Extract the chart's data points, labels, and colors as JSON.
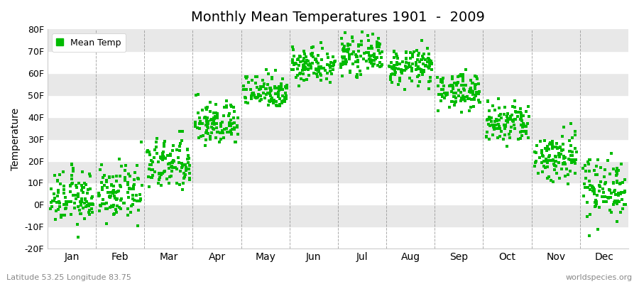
{
  "title": "Monthly Mean Temperatures 1901  -  2009",
  "ylabel": "Temperature",
  "bottom_left": "Latitude 53.25 Longitude 83.75",
  "bottom_right": "worldspecies.org",
  "legend_label": "Mean Temp",
  "dot_color": "#00bb00",
  "dot_size": 7,
  "ylim": [
    -20,
    80
  ],
  "ytick_vals": [
    -20,
    -10,
    0,
    10,
    20,
    30,
    40,
    50,
    60,
    70,
    80
  ],
  "ytick_labels": [
    "-20F",
    "-10F",
    "0F",
    "10F",
    "20F",
    "30F",
    "40F",
    "50F",
    "60F",
    "70F",
    "80F"
  ],
  "months": [
    "Jan",
    "Feb",
    "Mar",
    "Apr",
    "May",
    "Jun",
    "Jul",
    "Aug",
    "Sep",
    "Oct",
    "Nov",
    "Dec"
  ],
  "mean_temps_f": [
    3,
    5,
    18,
    37,
    52,
    64,
    68,
    63,
    52,
    37,
    22,
    8
  ],
  "std_temps_f": [
    6,
    6,
    6,
    5,
    4,
    4,
    4,
    4,
    4,
    5,
    6,
    7
  ],
  "n_years": 109,
  "background_color": "#ffffff",
  "band_colors": [
    "#e8e8e8",
    "#f2f2f2",
    "#e8e8e8",
    "#f2f2f2",
    "#e8e8e8",
    "#f2f2f2",
    "#e8e8e8",
    "#f2f2f2",
    "#e8e8e8",
    "#f2f2f2"
  ],
  "grid_color": "#888888"
}
